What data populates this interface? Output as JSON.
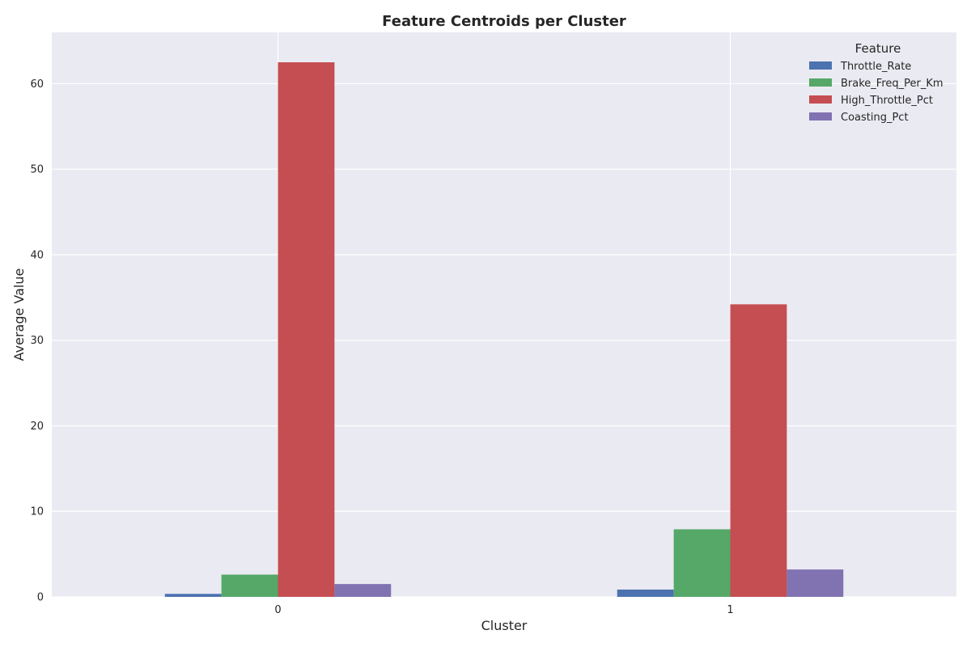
{
  "chart_data": {
    "type": "bar",
    "title": "Feature Centroids per Cluster",
    "xlabel": "Cluster",
    "ylabel": "Average Value",
    "categories": [
      "0",
      "1"
    ],
    "ylim": [
      0,
      66
    ],
    "yticks": [
      0,
      10,
      20,
      30,
      40,
      50,
      60
    ],
    "grid": true,
    "legend": {
      "title": "Feature",
      "placement": "top-right"
    },
    "series": [
      {
        "name": "Throttle_Rate",
        "color": "#4c72b0",
        "values": [
          0.35,
          0.85
        ]
      },
      {
        "name": "Brake_Freq_Per_Km",
        "color": "#55a868",
        "values": [
          2.6,
          7.9
        ]
      },
      {
        "name": "High_Throttle_Pct",
        "color": "#c44e52",
        "values": [
          62.5,
          34.2
        ]
      },
      {
        "name": "Coasting_Pct",
        "color": "#8172b2",
        "values": [
          1.5,
          3.2
        ]
      }
    ],
    "colors": {
      "plot_background": "#eaeaf2",
      "grid": "#ffffff"
    }
  }
}
